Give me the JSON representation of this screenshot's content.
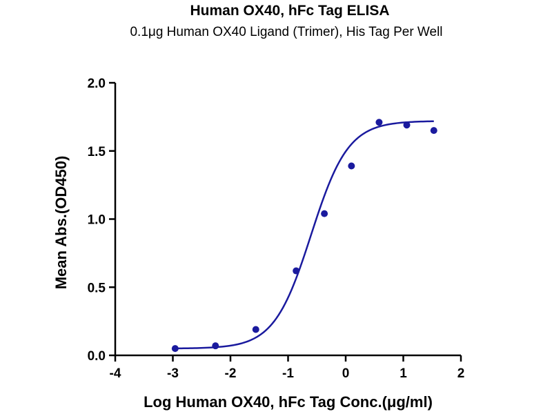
{
  "chart_data": {
    "type": "scatter",
    "title": "Human OX40, hFc Tag ELISA",
    "subtitle": "0.1μg  Human OX40 Ligand (Trimer), His Tag Per Well",
    "xlabel": "Log Human OX40, hFc Tag Conc.(μg/ml)",
    "ylabel": "Mean Abs.(OD450)",
    "xlim": [
      -4,
      2
    ],
    "ylim": [
      0,
      2.0
    ],
    "xticks": [
      "-4",
      "-3",
      "-2",
      "-1",
      "0",
      "1",
      "2"
    ],
    "yticks": [
      "0.0",
      "0.5",
      "1.0",
      "1.5",
      "2.0"
    ],
    "grid": false,
    "legend": "none",
    "series": [
      {
        "x": [
          -2.96,
          -2.26,
          -1.56,
          -0.86,
          -0.37,
          0.1,
          0.58,
          1.06,
          1.53
        ],
        "y": [
          0.05,
          0.07,
          0.19,
          0.62,
          1.04,
          1.39,
          1.71,
          1.69,
          1.65
        ],
        "color": "#1a1a9e"
      }
    ],
    "fit_curve": {
      "model": "4PL",
      "bottom": 0.05,
      "top": 1.72,
      "logEC50": -0.6,
      "hill": 1.35,
      "color": "#1a1a9e"
    }
  }
}
